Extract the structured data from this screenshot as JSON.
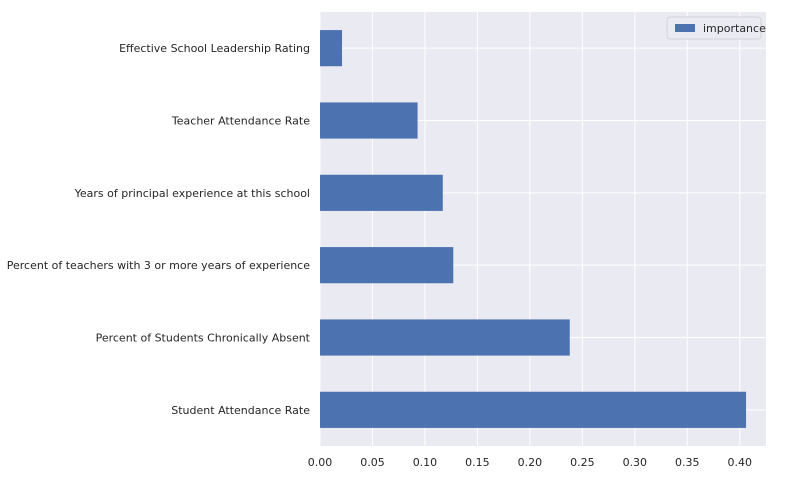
{
  "chart_data": {
    "type": "bar",
    "orientation": "horizontal",
    "categories": [
      "Effective School Leadership Rating",
      "Teacher Attendance Rate",
      "Years of principal experience at this school",
      "Percent of teachers with 3 or more years of experience",
      "Percent of Students Chronically Absent",
      "Student Attendance Rate"
    ],
    "series": [
      {
        "name": "importance",
        "values": [
          0.021,
          0.093,
          0.117,
          0.127,
          0.238,
          0.406
        ]
      }
    ],
    "title": "",
    "xlabel": "",
    "ylabel": "",
    "xlim": [
      0.0,
      0.425
    ],
    "xticks": [
      "0.00",
      "0.05",
      "0.10",
      "0.15",
      "0.20",
      "0.25",
      "0.30",
      "0.35",
      "0.40"
    ],
    "xtick_values": [
      0.0,
      0.05,
      0.1,
      0.15,
      0.2,
      0.25,
      0.3,
      0.35,
      0.4
    ],
    "grid": true,
    "legend_position": "top-right",
    "colors": {
      "bar": "#4c72b0",
      "plot_background": "#eaeaf2",
      "grid": "#ffffff"
    }
  }
}
